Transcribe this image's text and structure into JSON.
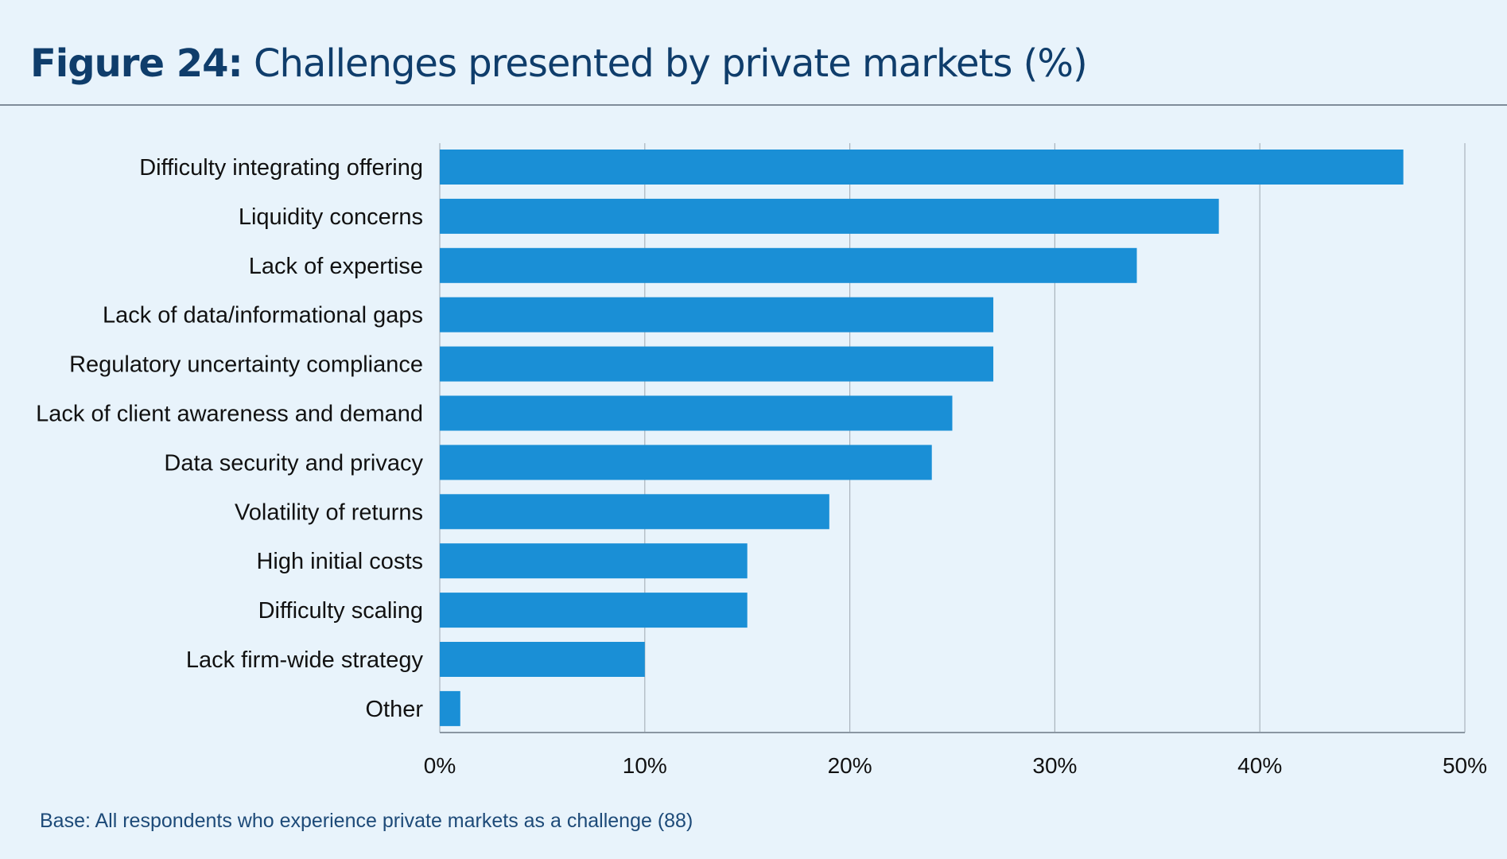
{
  "title": {
    "prefix": "Figure 24:",
    "text": "Challenges presented by private markets (%)"
  },
  "footer": "Base: All respondents who experience private markets as a challenge (88)",
  "colors": {
    "background": "#e8f3fb",
    "bar": "#1a8fd6",
    "title": "#0f3d6b",
    "grid": "#a9b3bc"
  },
  "chart_data": {
    "type": "bar",
    "orientation": "horizontal",
    "categories": [
      "Difficulty integrating offering",
      "Liquidity concerns",
      "Lack of expertise",
      "Lack of data/informational gaps",
      "Regulatory uncertainty compliance",
      "Lack of client awareness and demand",
      "Data security and privacy",
      "Volatility of returns",
      "High initial costs",
      "Difficulty scaling",
      "Lack firm-wide strategy",
      "Other"
    ],
    "values": [
      47,
      38,
      34,
      27,
      27,
      25,
      24,
      19,
      15,
      15,
      10,
      1
    ],
    "xlim": [
      0,
      50
    ],
    "xticks": [
      "0%",
      "10%",
      "20%",
      "30%",
      "40%",
      "50%"
    ],
    "grid": true,
    "legend": "none"
  }
}
